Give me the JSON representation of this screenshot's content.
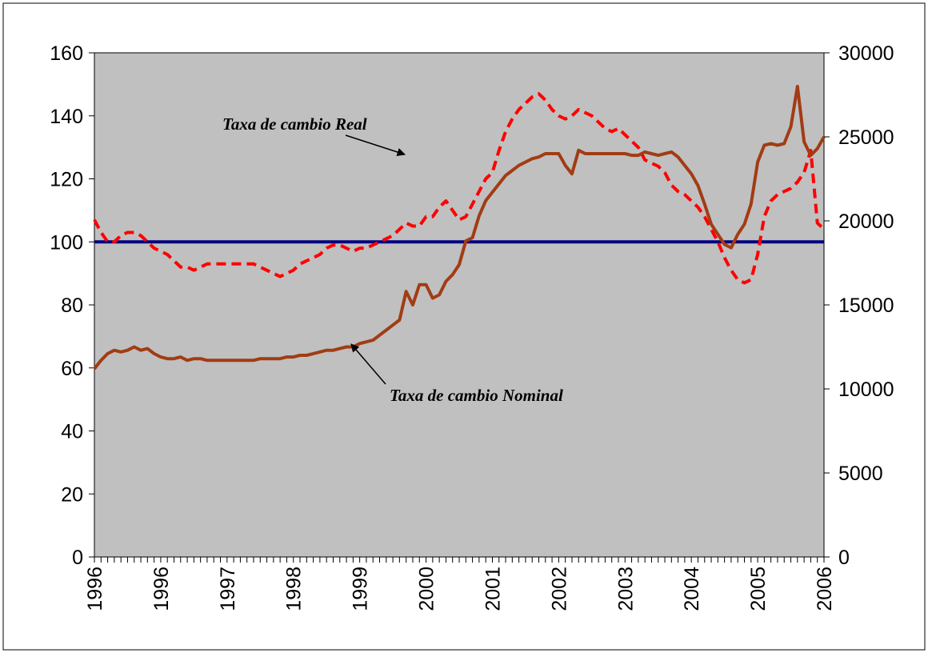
{
  "chart_data": {
    "type": "line",
    "categories": [
      "1996",
      null,
      null,
      null,
      null,
      null,
      null,
      null,
      null,
      null,
      "1996",
      null,
      null,
      null,
      null,
      null,
      null,
      null,
      null,
      null,
      "1997",
      null,
      null,
      null,
      null,
      null,
      null,
      null,
      null,
      null,
      "1998",
      null,
      null,
      null,
      null,
      null,
      null,
      null,
      null,
      null,
      "1999",
      null,
      null,
      null,
      null,
      null,
      null,
      null,
      null,
      null,
      "2000",
      null,
      null,
      null,
      null,
      null,
      null,
      null,
      null,
      null,
      "2001",
      null,
      null,
      null,
      null,
      null,
      null,
      null,
      null,
      null,
      "2002",
      null,
      null,
      null,
      null,
      null,
      null,
      null,
      null,
      null,
      "2003",
      null,
      null,
      null,
      null,
      null,
      null,
      null,
      null,
      null,
      "2004",
      null,
      null,
      null,
      null,
      null,
      null,
      null,
      null,
      null,
      "2005",
      null,
      null,
      null,
      null,
      null,
      null,
      null,
      null,
      null,
      "2006"
    ],
    "series": [
      {
        "color": "#ff0000",
        "dashed": true,
        "values": [
          107,
          103,
          100,
          100,
          102,
          103,
          103,
          102,
          100,
          98,
          97,
          96,
          94,
          92,
          92,
          91,
          92,
          93,
          93,
          93,
          93,
          93,
          93,
          93,
          93,
          92,
          91,
          90,
          89,
          90,
          91,
          93,
          94,
          95,
          96,
          98,
          99,
          99,
          98,
          97,
          98,
          98,
          99,
          100,
          101,
          102,
          104,
          106,
          105,
          105,
          108,
          108,
          111,
          113,
          110,
          107,
          108,
          112,
          116,
          120,
          122,
          129,
          135,
          139,
          142,
          144,
          146,
          147,
          145,
          142,
          140,
          139,
          140,
          142,
          141,
          140,
          138,
          136,
          135,
          136,
          134,
          132,
          130,
          126,
          125,
          124,
          122,
          118,
          116,
          115,
          113,
          111,
          108,
          104,
          100,
          95,
          91,
          88,
          87,
          88,
          96,
          108,
          113,
          115,
          116,
          117,
          119,
          122,
          129,
          106,
          104
        ]
      },
      {
        "color": "#a23c14",
        "axis": "y2",
        "values": [
          11200,
          11700,
          12100,
          12300,
          12200,
          12300,
          12500,
          12300,
          12400,
          12100,
          11900,
          11800,
          11800,
          11900,
          11700,
          11800,
          11800,
          11700,
          11700,
          11700,
          11700,
          11700,
          11700,
          11700,
          11700,
          11800,
          11800,
          11800,
          11800,
          11900,
          11900,
          12000,
          12000,
          12100,
          12200,
          12300,
          12300,
          12400,
          12500,
          12500,
          12700,
          12800,
          12900,
          13200,
          13500,
          13800,
          14100,
          15800,
          15000,
          16200,
          16200,
          15400,
          15600,
          16400,
          16800,
          17400,
          18800,
          19000,
          20300,
          21200,
          21700,
          22200,
          22700,
          23000,
          23300,
          23500,
          23700,
          23800,
          24000,
          24000,
          24000,
          23300,
          22800,
          24200,
          24000,
          24000,
          24000,
          24000,
          24000,
          24000,
          24000,
          23900,
          23900,
          24100,
          24000,
          23900,
          24000,
          24100,
          23800,
          23300,
          22800,
          22100,
          21000,
          19800,
          19200,
          18600,
          18400,
          19200,
          19800,
          21000,
          23500,
          24500,
          24600,
          24500,
          24600,
          25600,
          28000,
          24700,
          23900,
          24300,
          25000
        ]
      }
    ],
    "reference_line": {
      "value": 100,
      "color": "#000080"
    },
    "ylim": [
      0,
      160
    ],
    "yticks": [
      0,
      20,
      40,
      60,
      80,
      100,
      120,
      140,
      160
    ],
    "y2lim": [
      0,
      30000
    ],
    "y2ticks": [
      0,
      5000,
      10000,
      15000,
      20000,
      25000,
      30000
    ],
    "background": "#c0c0c0",
    "annotations": [
      "Taxa de cambio Real",
      "Taxa de cambio Nominal"
    ]
  }
}
